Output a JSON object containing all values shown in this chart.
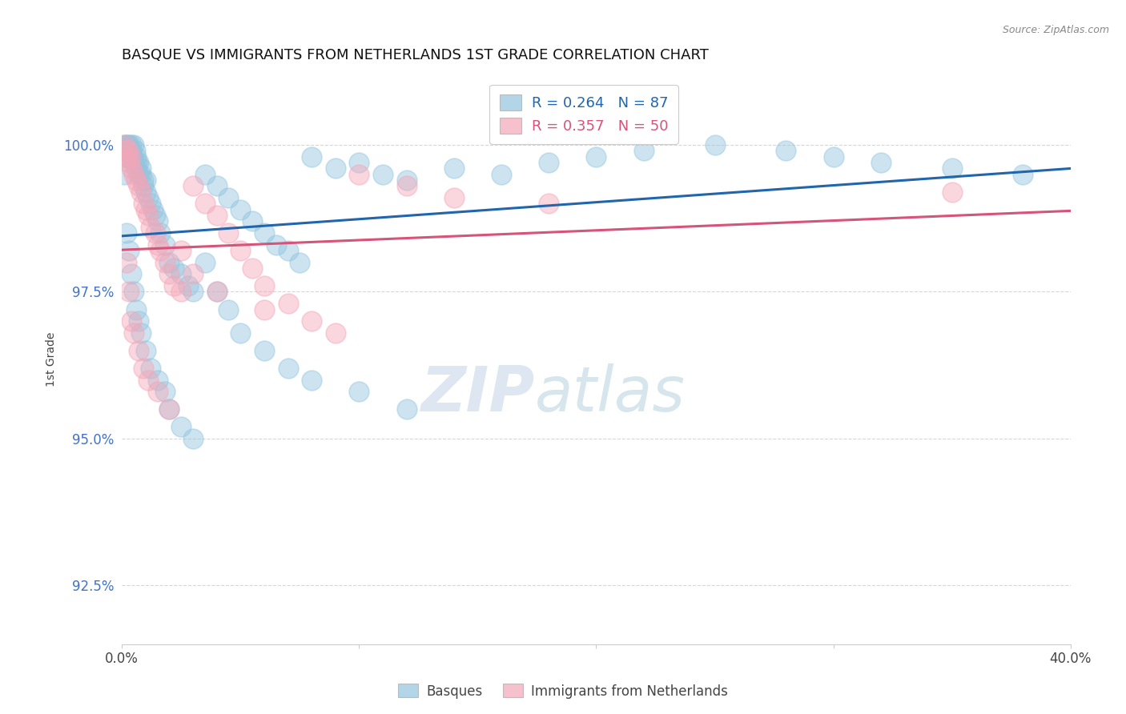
{
  "title": "BASQUE VS IMMIGRANTS FROM NETHERLANDS 1ST GRADE CORRELATION CHART",
  "source_text": "Source: ZipAtlas.com",
  "ylabel": "1st Grade",
  "x_min": 0.0,
  "x_max": 40.0,
  "y_min": 91.5,
  "y_max": 101.2,
  "y_ticks": [
    92.5,
    95.0,
    97.5,
    100.0
  ],
  "y_tick_labels": [
    "92.5%",
    "95.0%",
    "97.5%",
    "100.0%"
  ],
  "x_ticks": [
    0.0,
    10.0,
    20.0,
    30.0,
    40.0
  ],
  "x_tick_labels": [
    "0.0%",
    "",
    "",
    "",
    "40.0%"
  ],
  "basque_R": 0.264,
  "basque_N": 87,
  "netherlands_R": 0.357,
  "netherlands_N": 50,
  "blue_color": "#92c5de",
  "pink_color": "#f4a6b8",
  "blue_line_color": "#2166ac",
  "pink_line_color": "#d6537a",
  "watermark_zip": "ZIP",
  "watermark_atlas": "atlas",
  "legend_label_blue": "Basques",
  "legend_label_pink": "Immigrants from Netherlands",
  "basque_x": [
    0.1,
    0.1,
    0.15,
    0.2,
    0.2,
    0.25,
    0.3,
    0.3,
    0.35,
    0.4,
    0.4,
    0.45,
    0.5,
    0.5,
    0.55,
    0.6,
    0.6,
    0.65,
    0.7,
    0.7,
    0.8,
    0.8,
    0.9,
    0.9,
    1.0,
    1.0,
    1.1,
    1.2,
    1.3,
    1.4,
    1.5,
    1.6,
    1.8,
    2.0,
    2.2,
    2.5,
    2.8,
    3.0,
    3.5,
    4.0,
    4.5,
    5.0,
    5.5,
    6.0,
    6.5,
    7.0,
    7.5,
    8.0,
    9.0,
    10.0,
    11.0,
    12.0,
    14.0,
    16.0,
    18.0,
    20.0,
    22.0,
    25.0,
    28.0,
    30.0,
    32.0,
    35.0,
    38.0,
    0.1,
    0.2,
    0.3,
    0.4,
    0.5,
    0.6,
    0.7,
    0.8,
    1.0,
    1.2,
    1.5,
    1.8,
    2.0,
    2.5,
    3.0,
    3.5,
    4.0,
    4.5,
    5.0,
    6.0,
    7.0,
    8.0,
    10.0,
    12.0
  ],
  "basque_y": [
    100.0,
    99.8,
    100.0,
    99.9,
    100.0,
    100.0,
    99.8,
    100.0,
    99.9,
    99.9,
    100.0,
    99.8,
    100.0,
    99.7,
    99.9,
    99.6,
    99.8,
    99.7,
    99.5,
    99.7,
    99.5,
    99.6,
    99.3,
    99.4,
    99.2,
    99.4,
    99.1,
    99.0,
    98.9,
    98.8,
    98.7,
    98.5,
    98.3,
    98.0,
    97.9,
    97.8,
    97.6,
    97.5,
    99.5,
    99.3,
    99.1,
    98.9,
    98.7,
    98.5,
    98.3,
    98.2,
    98.0,
    99.8,
    99.6,
    99.7,
    99.5,
    99.4,
    99.6,
    99.5,
    99.7,
    99.8,
    99.9,
    100.0,
    99.9,
    99.8,
    99.7,
    99.6,
    99.5,
    99.5,
    98.5,
    98.2,
    97.8,
    97.5,
    97.2,
    97.0,
    96.8,
    96.5,
    96.2,
    96.0,
    95.8,
    95.5,
    95.2,
    95.0,
    98.0,
    97.5,
    97.2,
    96.8,
    96.5,
    96.2,
    96.0,
    95.8,
    95.5
  ],
  "netherlands_x": [
    0.1,
    0.15,
    0.2,
    0.25,
    0.3,
    0.35,
    0.4,
    0.5,
    0.6,
    0.7,
    0.8,
    0.9,
    1.0,
    1.1,
    1.2,
    1.4,
    1.5,
    1.6,
    1.8,
    2.0,
    2.2,
    2.5,
    3.0,
    3.5,
    4.0,
    4.5,
    5.0,
    5.5,
    6.0,
    7.0,
    8.0,
    9.0,
    10.0,
    12.0,
    14.0,
    18.0,
    35.0,
    0.2,
    0.3,
    0.4,
    0.5,
    0.7,
    0.9,
    1.1,
    1.5,
    2.0,
    2.5,
    3.0,
    4.0,
    6.0
  ],
  "netherlands_y": [
    100.0,
    99.9,
    99.8,
    99.9,
    99.7,
    99.8,
    99.6,
    99.5,
    99.4,
    99.3,
    99.2,
    99.0,
    98.9,
    98.8,
    98.6,
    98.5,
    98.3,
    98.2,
    98.0,
    97.8,
    97.6,
    97.5,
    99.3,
    99.0,
    98.8,
    98.5,
    98.2,
    97.9,
    97.6,
    97.3,
    97.0,
    96.8,
    99.5,
    99.3,
    99.1,
    99.0,
    99.2,
    98.0,
    97.5,
    97.0,
    96.8,
    96.5,
    96.2,
    96.0,
    95.8,
    95.5,
    98.2,
    97.8,
    97.5,
    97.2
  ]
}
